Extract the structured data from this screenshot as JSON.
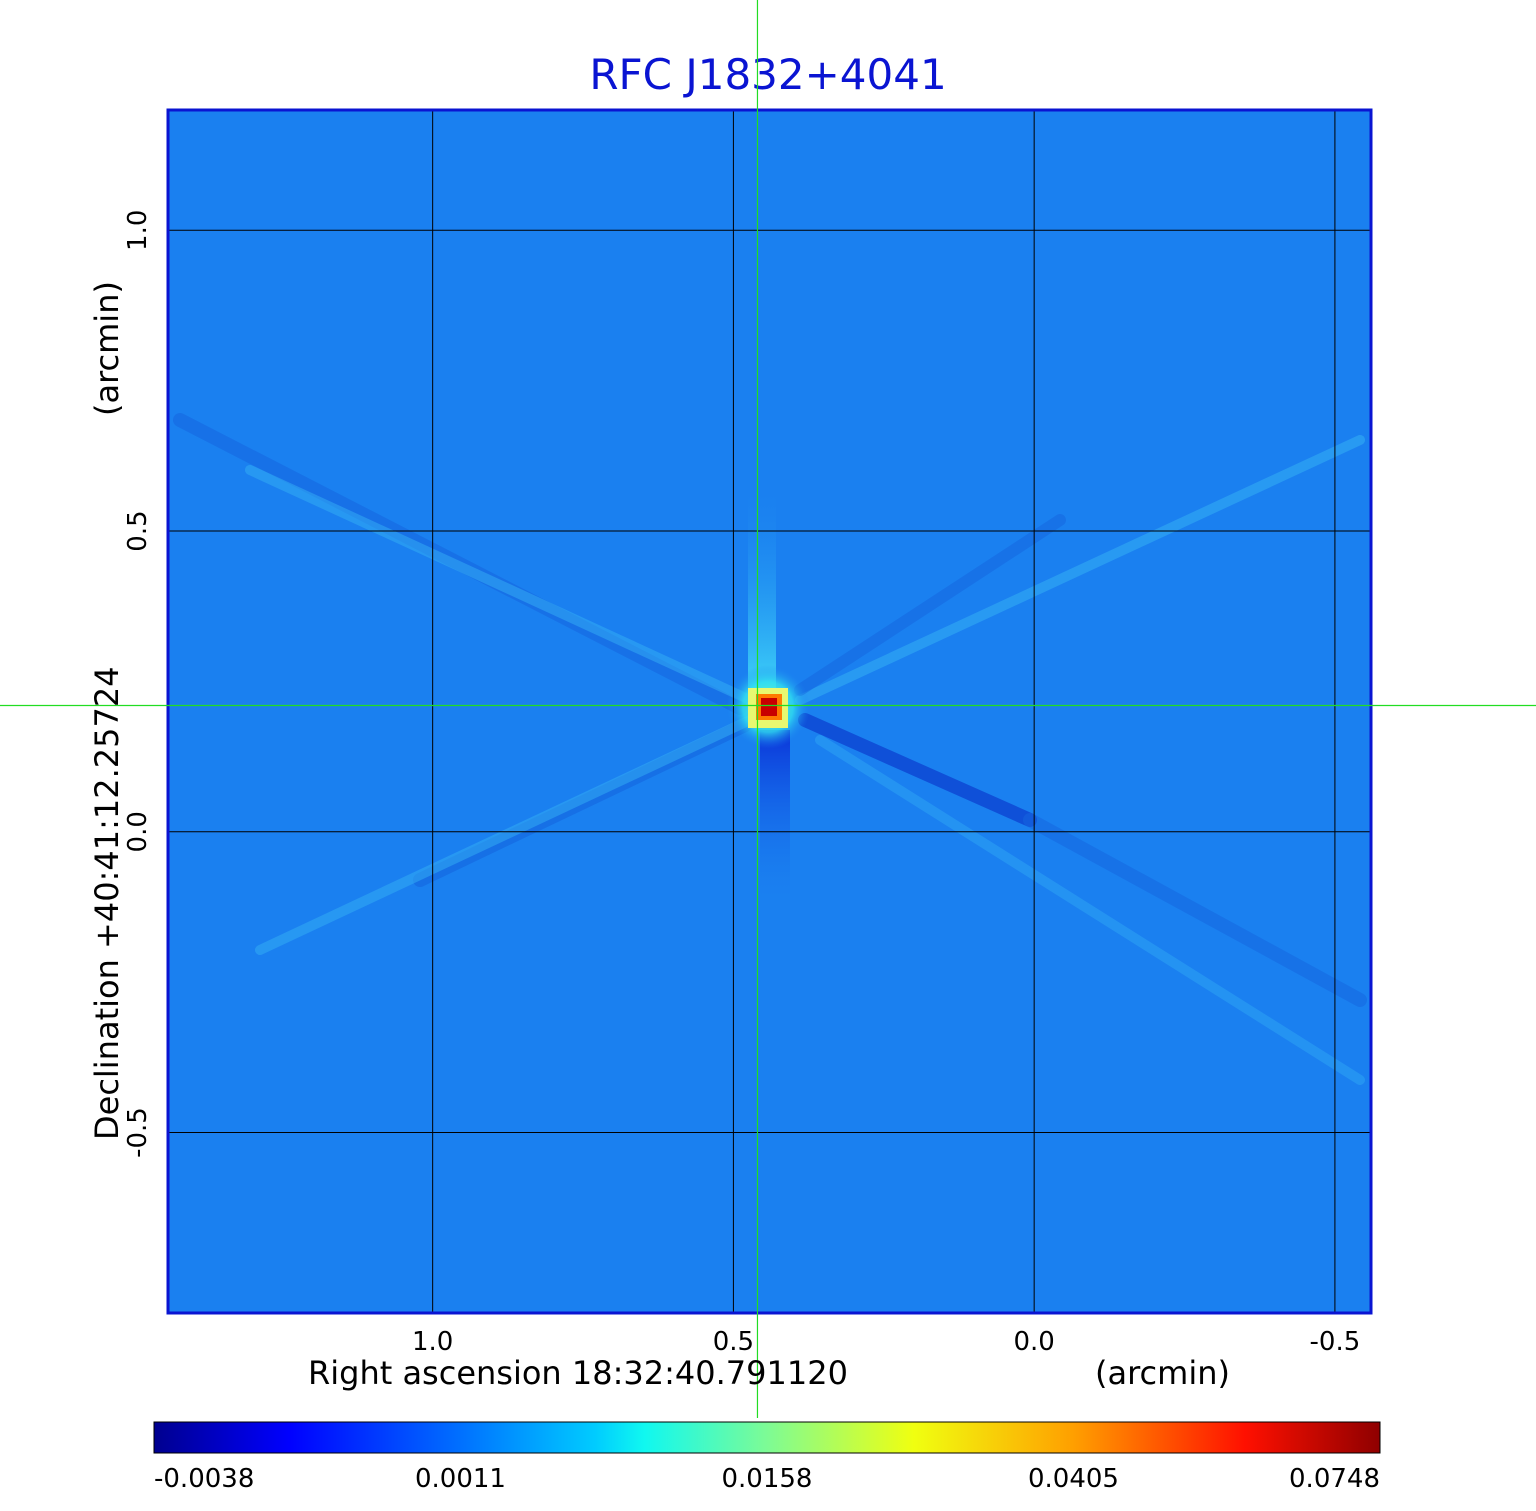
{
  "chart_data": {
    "type": "heatmap",
    "title": "RFC J1832+4041",
    "xlabel": "Right ascension  18:32:40.791120",
    "xunit": "(arcmin)",
    "ylabel": "Declination  +40:41:12.25724",
    "yunit": "(arcmin)",
    "x_ticks": [
      "1.0",
      "0.5",
      "0.0",
      "-0.5"
    ],
    "x_tick_values": [
      1.0,
      0.5,
      0.0,
      -0.5
    ],
    "y_ticks": [
      "1.0",
      "0.5",
      "0.0",
      "-0.5"
    ],
    "y_tick_values": [
      1.0,
      0.5,
      0.0,
      -0.5
    ],
    "xlim": [
      1.44,
      -0.56
    ],
    "ylim": [
      -0.8,
      1.2
    ],
    "grid": true,
    "crosshair": {
      "x": 0.46,
      "y": 0.21
    },
    "source_peak": {
      "x": 0.46,
      "y": 0.21,
      "value": 0.0748
    },
    "colorbar": {
      "colormap": "jet",
      "ticks": [
        "-0.0038",
        "0.0011",
        "0.0158",
        "0.0405",
        "0.0748"
      ],
      "values": [
        -0.0038,
        0.0011,
        0.0158,
        0.0405,
        0.0748
      ],
      "placement": "bottom"
    },
    "colors": {
      "title": "#0a14d2",
      "frame": "#0a14d2",
      "background_map": "#1a80f0",
      "crosshair": "#22dd22",
      "grid": "#000000"
    }
  }
}
